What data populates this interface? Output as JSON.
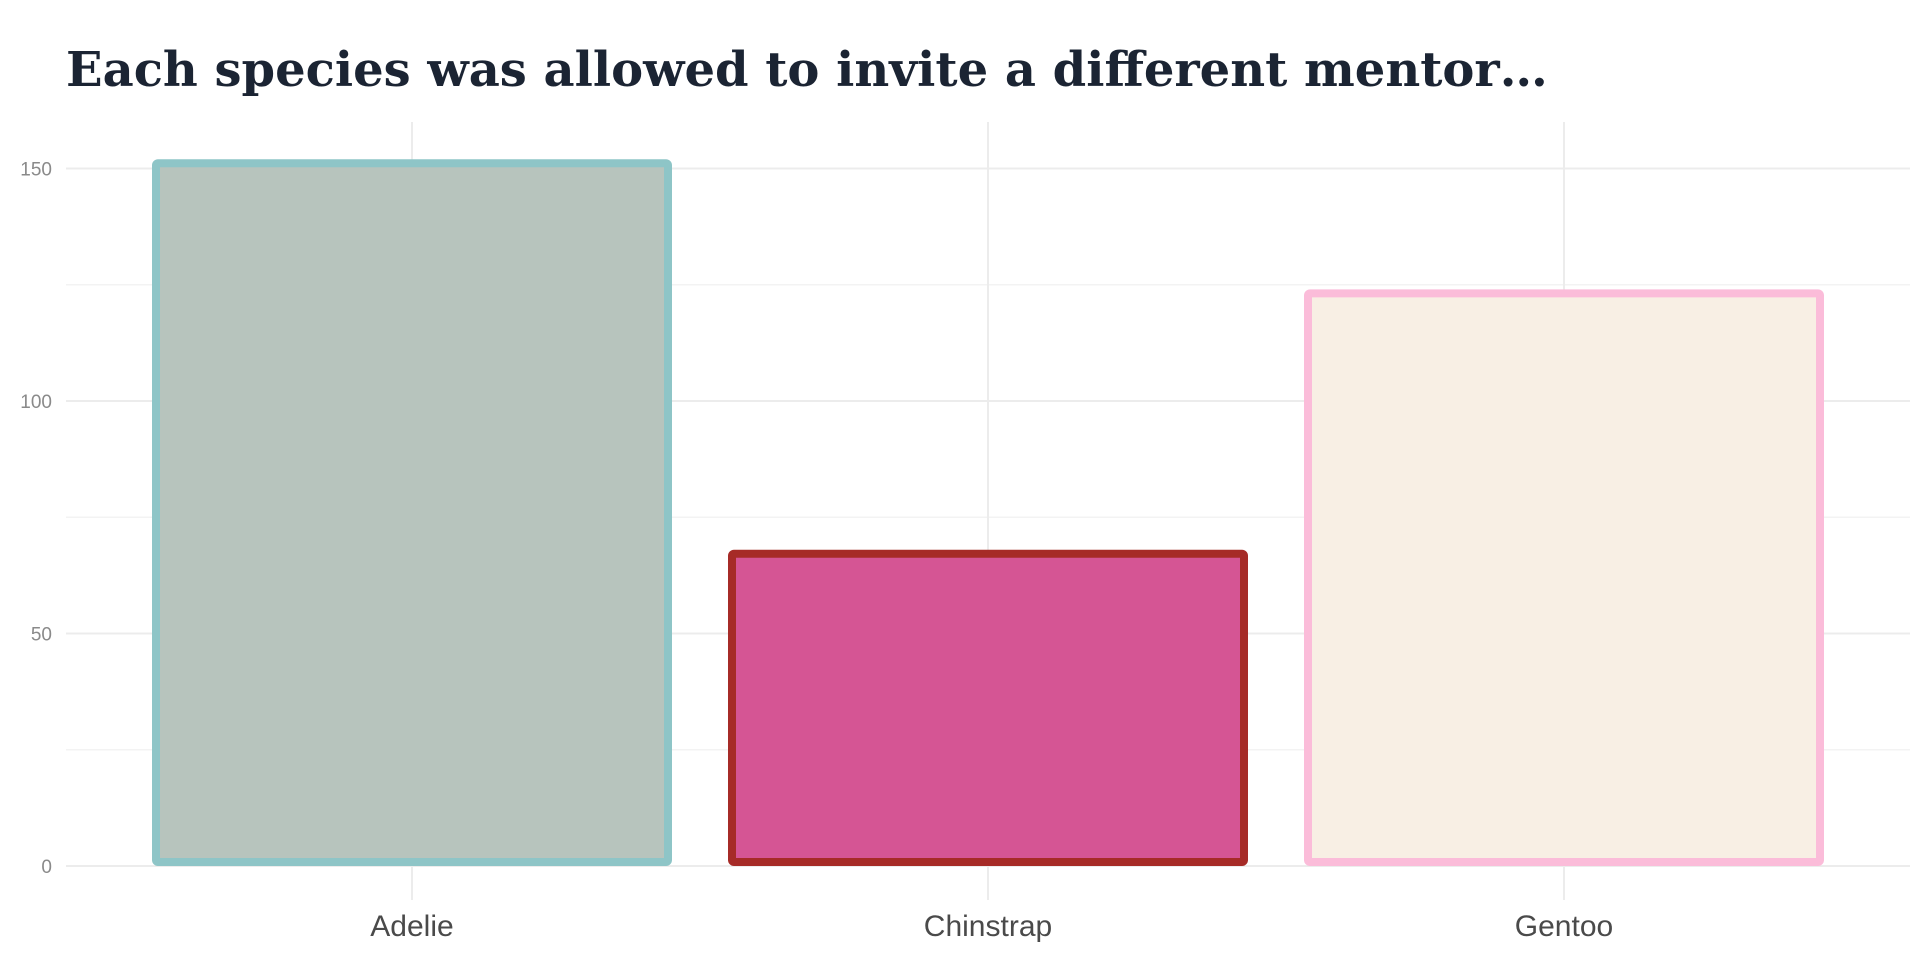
{
  "chart_data": {
    "type": "bar",
    "title": "Each species was allowed to invite a different mentor…",
    "xlabel": "",
    "ylabel": "",
    "categories": [
      "Adelie",
      "Chinstrap",
      "Gentoo"
    ],
    "values": [
      152,
      68,
      124
    ],
    "ylim": [
      0,
      160
    ],
    "yticks": [
      0,
      50,
      100,
      150
    ],
    "grid": true,
    "legend": "none",
    "fill_colors": [
      "#b7c4bd",
      "#d55594",
      "#f8efe4"
    ],
    "border_colors": [
      "#8ec5c7",
      "#a62b27",
      "#fbbcd9"
    ]
  }
}
